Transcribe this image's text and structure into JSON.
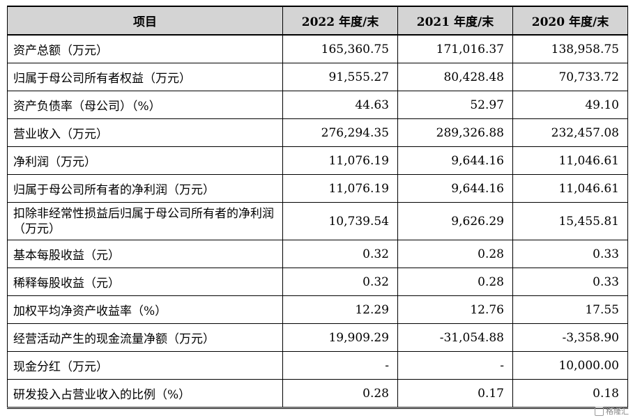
{
  "table": {
    "headers": [
      "项目",
      "2022 年度/末",
      "2021 年度/末",
      "2020 年度/末"
    ],
    "rows": [
      {
        "label": "资产总额（万元）",
        "v2022": "165,360.75",
        "v2021": "171,016.37",
        "v2020": "138,958.75"
      },
      {
        "label": "归属于母公司所有者权益（万元）",
        "v2022": "91,555.27",
        "v2021": "80,428.48",
        "v2020": "70,733.72"
      },
      {
        "label": "资产负债率（母公司）（%）",
        "v2022": "44.63",
        "v2021": "52.97",
        "v2020": "49.10"
      },
      {
        "label": "营业收入（万元）",
        "v2022": "276,294.35",
        "v2021": "289,326.88",
        "v2020": "232,457.08"
      },
      {
        "label": "净利润（万元）",
        "v2022": "11,076.19",
        "v2021": "9,644.16",
        "v2020": "11,046.61"
      },
      {
        "label": "归属于母公司所有者的净利润（万元）",
        "v2022": "11,076.19",
        "v2021": "9,644.16",
        "v2020": "11,046.61"
      },
      {
        "label": "扣除非经常性损益后归属于母公司所有者的净利润（万元）",
        "v2022": "10,739.54",
        "v2021": "9,626.29",
        "v2020": "15,455.81"
      },
      {
        "label": "基本每股收益（元）",
        "v2022": "0.32",
        "v2021": "0.28",
        "v2020": "0.33"
      },
      {
        "label": "稀释每股收益（元）",
        "v2022": "0.32",
        "v2021": "0.28",
        "v2020": "0.33"
      },
      {
        "label": "加权平均净资产收益率（%）",
        "v2022": "12.29",
        "v2021": "12.76",
        "v2020": "17.55"
      },
      {
        "label": "经营活动产生的现金流量净额（万元）",
        "v2022": "19,909.29",
        "v2021": "-31,054.88",
        "v2020": "-3,358.90"
      },
      {
        "label": "现金分红（万元）",
        "v2022": "-",
        "v2021": "-",
        "v2020": "10,000.00"
      },
      {
        "label": "研发投入占营业收入的比例（%）",
        "v2022": "0.28",
        "v2021": "0.17",
        "v2020": "0.18"
      }
    ]
  },
  "watermark": {
    "text": "格隆汇",
    "icon": "gelonghui-logo-icon"
  },
  "colors": {
    "header_bg": "#d4d4d4",
    "border": "#000000"
  }
}
